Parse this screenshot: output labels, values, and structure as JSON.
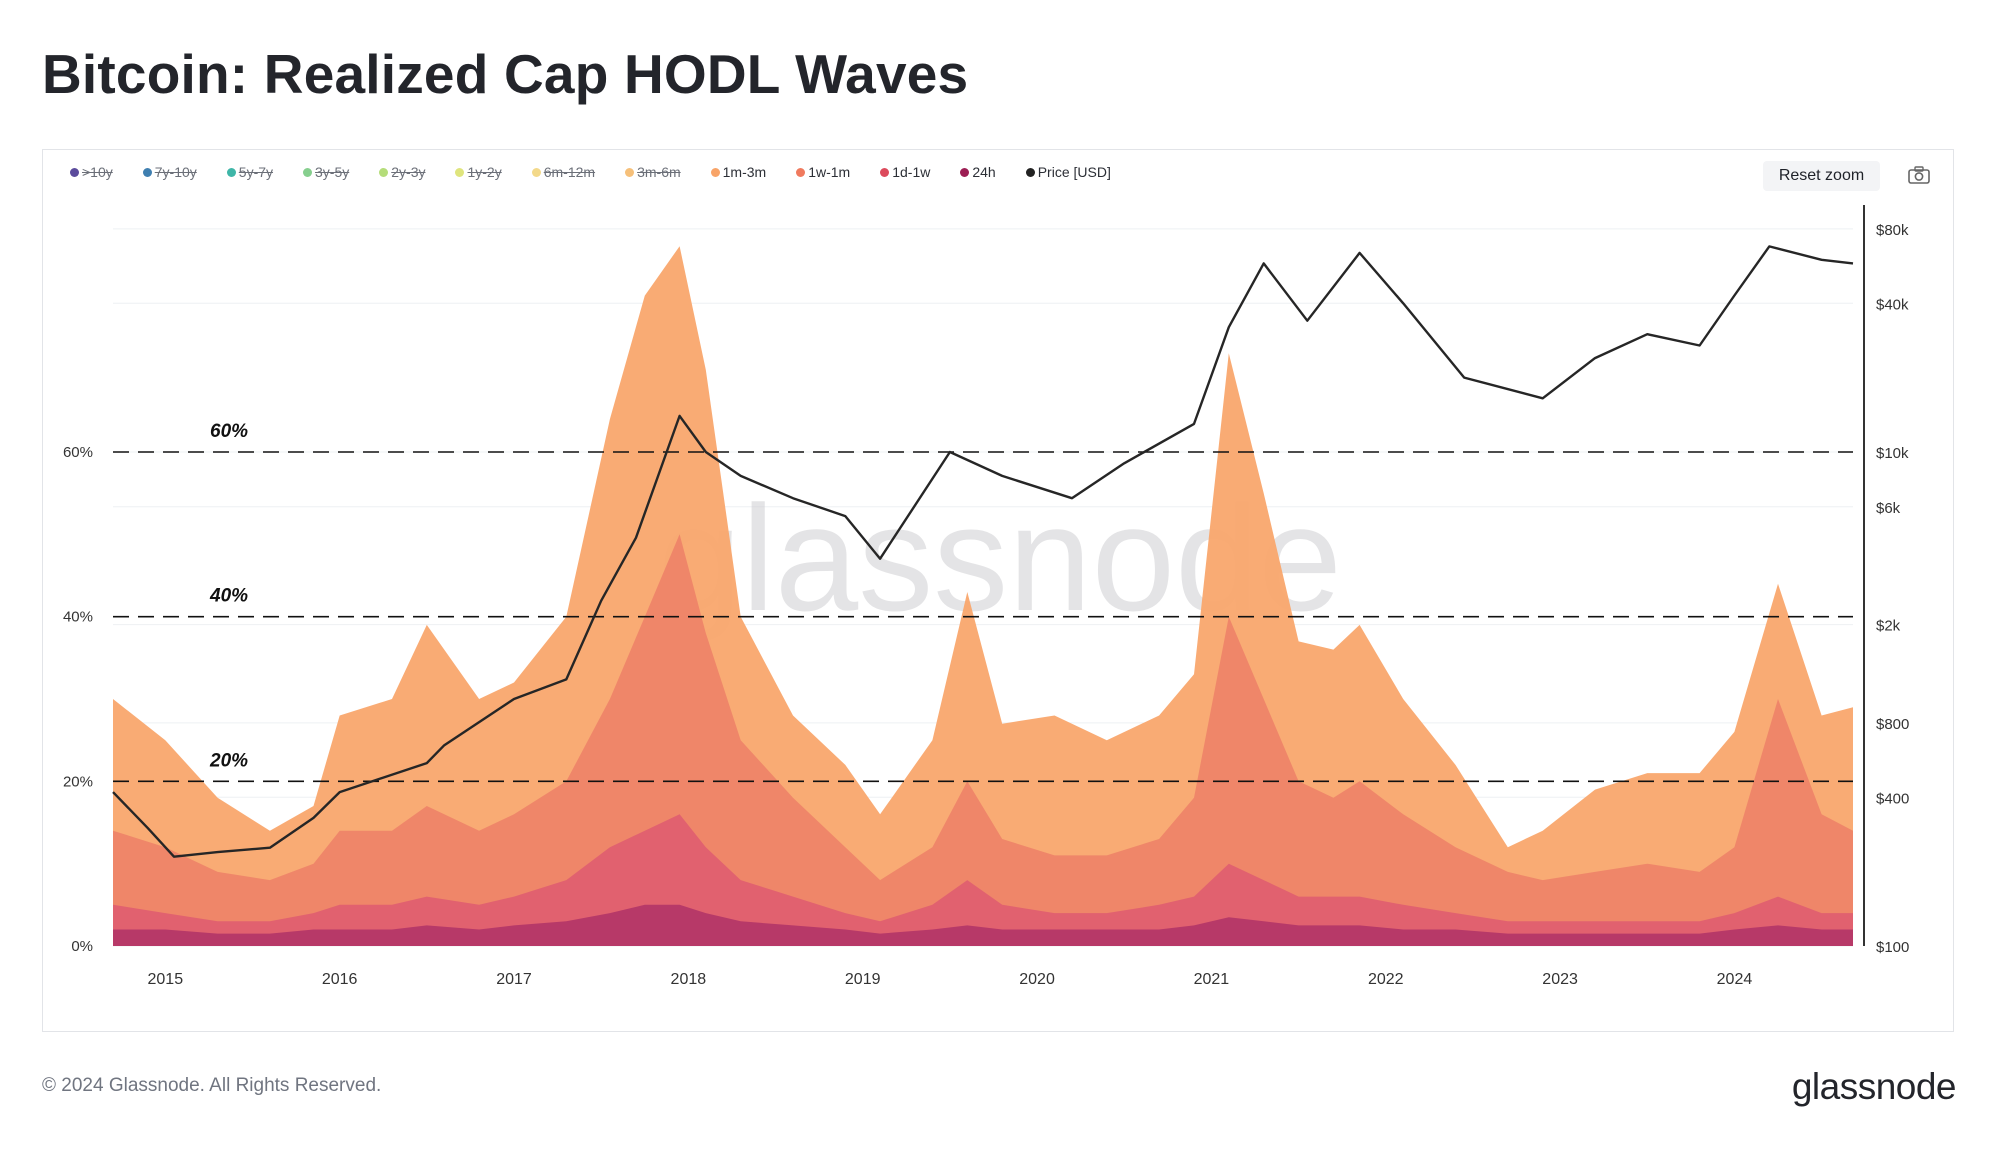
{
  "page": {
    "title": "Bitcoin: Realized Cap HODL Waves",
    "footer": "© 2024 Glassnode. All Rights Reserved.",
    "brand": "glassnode",
    "watermark": "glassnode",
    "reset_zoom_label": "Reset zoom"
  },
  "legend": [
    {
      "label": ">10y",
      "color": "#5b4b9c",
      "visible": false
    },
    {
      "label": "7y-10y",
      "color": "#3f7fb0",
      "visible": false
    },
    {
      "label": "5y-7y",
      "color": "#3fb6a8",
      "visible": false
    },
    {
      "label": "3y-5y",
      "color": "#86cf8e",
      "visible": false
    },
    {
      "label": "2y-3y",
      "color": "#b5dd7a",
      "visible": false
    },
    {
      "label": "1y-2y",
      "color": "#dfe57d",
      "visible": false
    },
    {
      "label": "6m-12m",
      "color": "#f3d98a",
      "visible": false
    },
    {
      "label": "3m-6m",
      "color": "#f6c07a",
      "visible": false
    },
    {
      "label": "1m-3m",
      "color": "#f8a468",
      "visible": true
    },
    {
      "label": "1w-1m",
      "color": "#f07a5e",
      "visible": true
    },
    {
      "label": "1d-1w",
      "color": "#dc4a5c",
      "visible": true
    },
    {
      "label": "24h",
      "color": "#9c1e54",
      "visible": true
    },
    {
      "label": "Price [USD]",
      "color": "#222222",
      "visible": true
    }
  ],
  "chart_data": {
    "type": "area",
    "title": "Bitcoin: Realized Cap HODL Waves",
    "x_ticks": [
      "2015",
      "2016",
      "2017",
      "2018",
      "2019",
      "2020",
      "2021",
      "2022",
      "2023",
      "2024"
    ],
    "x_range": [
      2014.7,
      2024.68
    ],
    "y_left": {
      "ticks": [
        "0%",
        "20%",
        "40%",
        "60%"
      ],
      "range": [
        0,
        90
      ]
    },
    "y_right": {
      "scale": "log",
      "ticks": [
        "$100",
        "$400",
        "$800",
        "$2k",
        "$6k",
        "$10k",
        "$40k",
        "$80k"
      ],
      "tick_values": [
        100,
        400,
        800,
        2000,
        6000,
        10000,
        40000,
        80000
      ]
    },
    "reference_lines": [
      {
        "value": 60,
        "label": "60%"
      },
      {
        "value": 40,
        "label": "40%"
      },
      {
        "value": 20,
        "label": "20%"
      }
    ],
    "x": [
      2014.7,
      2015.0,
      2015.3,
      2015.6,
      2015.85,
      2016.0,
      2016.3,
      2016.5,
      2016.8,
      2017.0,
      2017.3,
      2017.55,
      2017.75,
      2017.95,
      2018.1,
      2018.3,
      2018.6,
      2018.9,
      2019.1,
      2019.4,
      2019.6,
      2019.8,
      2020.1,
      2020.4,
      2020.7,
      2020.9,
      2021.1,
      2021.3,
      2021.5,
      2021.7,
      2021.85,
      2022.1,
      2022.4,
      2022.7,
      2022.9,
      2023.2,
      2023.5,
      2023.8,
      2024.0,
      2024.25,
      2024.5,
      2024.68
    ],
    "series": [
      {
        "name": "24h",
        "values": [
          2,
          2,
          1.5,
          1.5,
          2,
          2,
          2,
          2.5,
          2,
          2.5,
          3,
          4,
          5,
          5,
          4,
          3,
          2.5,
          2,
          1.5,
          2,
          2.5,
          2,
          2,
          2,
          2,
          2.5,
          3.5,
          3,
          2.5,
          2.5,
          2.5,
          2,
          2,
          1.5,
          1.5,
          1.5,
          1.5,
          1.5,
          2,
          2.5,
          2,
          2
        ]
      },
      {
        "name": "1d-1w",
        "values": [
          5,
          4,
          3,
          3,
          4,
          5,
          5,
          6,
          5,
          6,
          8,
          12,
          14,
          16,
          12,
          8,
          6,
          4,
          3,
          5,
          8,
          5,
          4,
          4,
          5,
          6,
          10,
          8,
          6,
          6,
          6,
          5,
          4,
          3,
          3,
          3,
          3,
          3,
          4,
          6,
          4,
          4
        ]
      },
      {
        "name": "1w-1m",
        "values": [
          14,
          12,
          9,
          8,
          10,
          14,
          14,
          17,
          14,
          16,
          20,
          30,
          40,
          50,
          38,
          25,
          18,
          12,
          8,
          12,
          20,
          13,
          11,
          11,
          13,
          18,
          40,
          30,
          20,
          18,
          20,
          16,
          12,
          9,
          8,
          9,
          10,
          9,
          12,
          30,
          16,
          14
        ]
      },
      {
        "name": "1m-3m",
        "values": [
          30,
          25,
          18,
          14,
          17,
          28,
          30,
          39,
          30,
          32,
          40,
          64,
          79,
          85,
          70,
          40,
          28,
          22,
          16,
          25,
          43,
          27,
          28,
          25,
          28,
          33,
          72,
          55,
          37,
          36,
          39,
          30,
          22,
          12,
          14,
          19,
          21,
          21,
          26,
          44,
          28,
          29
        ]
      }
    ],
    "price": {
      "name": "Price [USD]",
      "x": [
        2014.7,
        2014.9,
        2015.05,
        2015.3,
        2015.6,
        2015.85,
        2016.0,
        2016.5,
        2016.6,
        2017.0,
        2017.3,
        2017.5,
        2017.7,
        2017.95,
        2018.1,
        2018.3,
        2018.6,
        2018.9,
        2019.1,
        2019.5,
        2019.8,
        2020.2,
        2020.5,
        2020.9,
        2021.1,
        2021.3,
        2021.55,
        2021.85,
        2022.1,
        2022.45,
        2022.9,
        2023.2,
        2023.5,
        2023.8,
        2024.0,
        2024.2,
        2024.5,
        2024.68
      ],
      "values": [
        420,
        300,
        230,
        240,
        250,
        330,
        420,
        550,
        650,
        1000,
        1200,
        2500,
        4500,
        14000,
        10000,
        8000,
        6500,
        5500,
        3700,
        10000,
        8000,
        6500,
        9000,
        13000,
        32000,
        58000,
        34000,
        64000,
        40000,
        20000,
        16500,
        24000,
        30000,
        27000,
        43000,
        68000,
        60000,
        58000
      ]
    }
  }
}
